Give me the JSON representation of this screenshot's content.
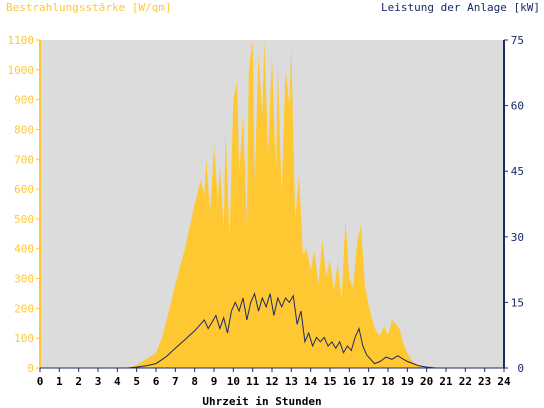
{
  "chart_data": {
    "type": "area",
    "left_axis_title": "Bestrahlungsstärke [W/qm]",
    "right_axis_title": "Leistung der Anlage [kW]",
    "xlabel": "Uhrzeit in Stunden",
    "x_ticks": [
      "0",
      "1",
      "2",
      "3",
      "4",
      "5",
      "6",
      "7",
      "8",
      "9",
      "10",
      "11",
      "12",
      "13",
      "14",
      "15",
      "16",
      "17",
      "18",
      "19",
      "20",
      "21",
      "22",
      "23",
      "24"
    ],
    "xlim": [
      0,
      24
    ],
    "y_left_lim": [
      0,
      1100
    ],
    "y_left_ticks": [
      "0",
      "100",
      "200",
      "300",
      "400",
      "500",
      "600",
      "700",
      "800",
      "900",
      "1000",
      "1100"
    ],
    "y_right_lim": [
      0,
      75
    ],
    "y_right_ticks": [
      "0",
      "15",
      "30",
      "45",
      "60",
      "75"
    ],
    "grid": false,
    "colors": {
      "plot_background": "#dcdcdc",
      "irradiance_fill": "#ffc833",
      "power_line": "#1a2a66",
      "left_axis": "#ffc833",
      "right_axis": "#1a2a66"
    },
    "series": [
      {
        "axis": "left",
        "style": "area",
        "x": [
          0,
          4.5,
          5,
          5.5,
          6,
          6.3,
          6.7,
          7,
          7.5,
          8,
          8.3,
          8.5,
          8.6,
          8.8,
          9,
          9.2,
          9.3,
          9.5,
          9.6,
          9.8,
          10,
          10.2,
          10.3,
          10.5,
          10.7,
          10.8,
          11,
          11.1,
          11.3,
          11.5,
          11.6,
          11.8,
          12,
          12.2,
          12.3,
          12.5,
          12.7,
          12.9,
          13,
          13.2,
          13.4,
          13.6,
          13.8,
          14,
          14.2,
          14.4,
          14.6,
          14.8,
          15,
          15.2,
          15.4,
          15.6,
          15.8,
          16,
          16.2,
          16.4,
          16.6,
          16.8,
          17,
          17.2,
          17.4,
          17.6,
          17.8,
          18,
          18.2,
          18.4,
          18.6,
          18.8,
          19,
          19.3,
          19.6,
          20,
          20.5,
          24
        ],
        "values": [
          0,
          0,
          10,
          30,
          50,
          100,
          200,
          280,
          400,
          550,
          630,
          580,
          700,
          520,
          750,
          560,
          680,
          470,
          800,
          430,
          900,
          960,
          650,
          850,
          480,
          1000,
          1100,
          620,
          1050,
          850,
          1100,
          720,
          1050,
          650,
          1020,
          580,
          1000,
          880,
          1080,
          500,
          650,
          380,
          400,
          330,
          390,
          280,
          430,
          310,
          360,
          260,
          350,
          230,
          500,
          300,
          270,
          420,
          480,
          280,
          210,
          160,
          120,
          110,
          140,
          110,
          160,
          150,
          130,
          80,
          50,
          20,
          10,
          0,
          0,
          0
        ]
      },
      {
        "axis": "right",
        "style": "line",
        "x": [
          0,
          4.5,
          5,
          5.5,
          6,
          6.5,
          7,
          7.5,
          8,
          8.3,
          8.5,
          8.7,
          8.9,
          9.1,
          9.3,
          9.5,
          9.7,
          9.9,
          10.1,
          10.3,
          10.5,
          10.7,
          10.9,
          11.1,
          11.3,
          11.5,
          11.7,
          11.9,
          12.1,
          12.3,
          12.5,
          12.7,
          12.9,
          13.1,
          13.3,
          13.5,
          13.7,
          13.9,
          14.1,
          14.3,
          14.5,
          14.7,
          14.9,
          15.1,
          15.3,
          15.5,
          15.7,
          15.9,
          16.1,
          16.3,
          16.5,
          16.7,
          16.9,
          17.1,
          17.3,
          17.6,
          17.9,
          18.2,
          18.5,
          18.8,
          19,
          19.3,
          19.6,
          20,
          20.5,
          24
        ],
        "values": [
          0,
          0,
          0.2,
          0.5,
          1,
          2.5,
          4.5,
          6.5,
          8.5,
          10,
          11,
          9,
          10.5,
          12,
          9,
          11.5,
          8,
          13,
          15,
          13,
          16,
          11,
          15,
          17,
          13,
          16,
          14,
          17,
          12,
          16,
          14,
          16,
          15,
          16.5,
          10,
          13,
          6,
          8,
          5,
          7,
          6,
          7,
          5,
          6,
          4.5,
          6,
          3.5,
          5,
          4,
          7,
          9,
          5,
          3,
          2,
          1,
          1.5,
          2.5,
          2,
          2.8,
          2,
          1.5,
          1,
          0.5,
          0.2,
          0,
          0
        ]
      }
    ]
  }
}
